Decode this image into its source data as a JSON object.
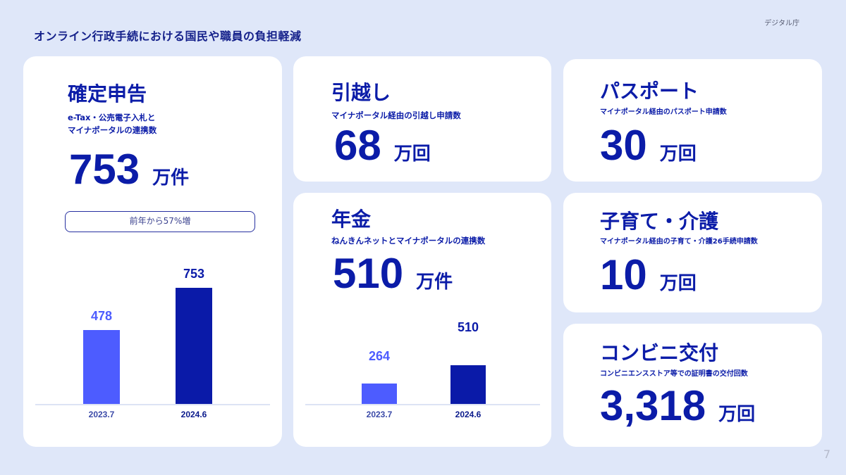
{
  "header": {
    "title": "オンライン行政手続における国民や職員の負担軽減",
    "org": "デジタル庁",
    "page": "7"
  },
  "colors": {
    "background": "#dfe7f9",
    "text": "#0b1ca8",
    "bar_prev": "#4d5cff",
    "bar_curr": "#0a1aa8"
  },
  "cards": {
    "kakutei": {
      "title": "確定申告",
      "sub1": "e-Tax・公売電子入札と",
      "sub2": "マイナポータルの連携数",
      "value": "753",
      "unit": "万件",
      "badge": "前年から57%増"
    },
    "hikkoshi": {
      "title": "引越し",
      "sub": "マイナポータル経由の引越し申請数",
      "value": "68",
      "unit": "万回"
    },
    "nenkin": {
      "title": "年金",
      "sub": "ねんきんネットとマイナポータルの連携数",
      "value": "510",
      "unit": "万件"
    },
    "passport": {
      "title": "パスポート",
      "sub": "マイナポータル経由のパスポート申請数",
      "value": "30",
      "unit": "万回"
    },
    "kosodate": {
      "title": "子育て・介護",
      "sub": "マイナポータル経由の子育て・介護26手続申請数",
      "value": "10",
      "unit": "万回"
    },
    "konbini": {
      "title": "コンビニ交付",
      "sub": "コンビニエンスストア等での証明書の交付回数",
      "value": "3,318",
      "unit": "万回"
    }
  },
  "chart_data": [
    {
      "type": "bar",
      "title": "確定申告",
      "categories": [
        "2023.7",
        "2024.6"
      ],
      "values": [
        478,
        753
      ],
      "labels": [
        "478",
        "753"
      ],
      "unit": "万件",
      "ylim": [
        0,
        800
      ],
      "grid": false
    },
    {
      "type": "bar",
      "title": "年金",
      "categories": [
        "2023.7",
        "2024.6"
      ],
      "values": [
        264,
        510
      ],
      "labels": [
        "264",
        "510"
      ],
      "unit": "万件",
      "ylim": [
        0,
        1600
      ],
      "grid": false
    }
  ]
}
